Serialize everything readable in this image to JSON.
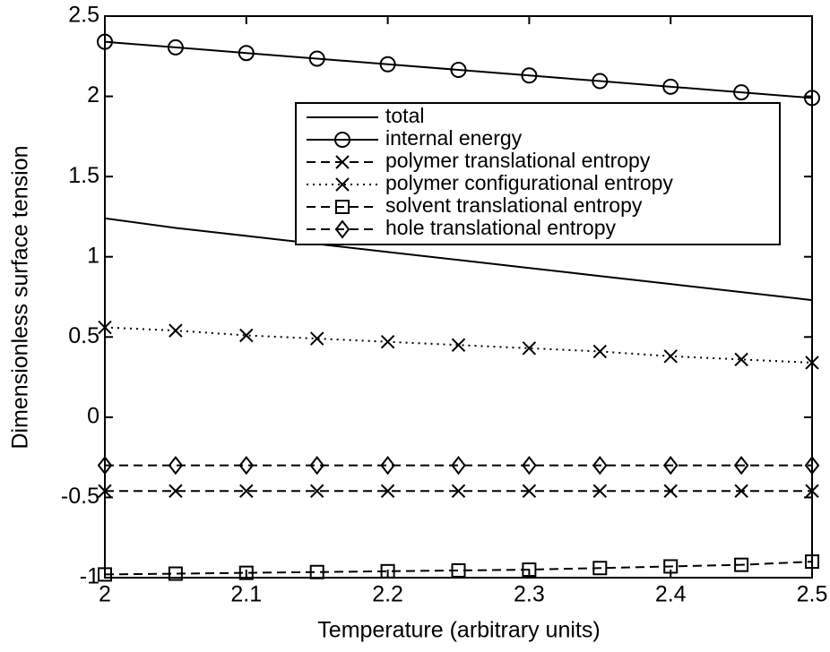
{
  "chart_data": {
    "type": "line",
    "xlabel": "Temperature (arbitrary units)",
    "ylabel": "Dimensionless surface tension",
    "x": [
      2,
      2.05,
      2.1,
      2.15,
      2.2,
      2.25,
      2.3,
      2.35,
      2.4,
      2.45,
      2.5
    ],
    "xlim": [
      2,
      2.5
    ],
    "xticks": [
      2,
      2.1,
      2.2,
      2.3,
      2.4,
      2.5
    ],
    "ylim": [
      -1,
      2.5
    ],
    "yticks": [
      -1,
      -0.5,
      0,
      0.5,
      1,
      1.5,
      2,
      2.5
    ],
    "series": [
      {
        "name": "total",
        "color": "#000000",
        "linestyle": "solid",
        "marker": "none",
        "values": [
          1.24,
          1.18,
          1.13,
          1.08,
          1.03,
          0.98,
          0.93,
          0.88,
          0.83,
          0.78,
          0.73
        ]
      },
      {
        "name": "internal energy",
        "color": "#000000",
        "linestyle": "solid",
        "marker": "circle",
        "values": [
          2.34,
          2.305,
          2.27,
          2.235,
          2.2,
          2.165,
          2.13,
          2.095,
          2.06,
          2.025,
          1.99
        ]
      },
      {
        "name": "polymer translational entropy",
        "color": "#000000",
        "linestyle": "dashed",
        "marker": "x",
        "values": [
          -0.46,
          -0.46,
          -0.46,
          -0.46,
          -0.46,
          -0.46,
          -0.46,
          -0.46,
          -0.46,
          -0.46,
          -0.46
        ]
      },
      {
        "name": "polymer configurational entropy",
        "color": "#000000",
        "linestyle": "dotted",
        "marker": "x",
        "values": [
          0.56,
          0.54,
          0.51,
          0.49,
          0.47,
          0.45,
          0.43,
          0.41,
          0.38,
          0.36,
          0.34
        ]
      },
      {
        "name": "solvent translational entropy",
        "color": "#000000",
        "linestyle": "dashed",
        "marker": "square",
        "values": [
          -0.98,
          -0.975,
          -0.97,
          -0.965,
          -0.96,
          -0.955,
          -0.95,
          -0.94,
          -0.93,
          -0.92,
          -0.9
        ]
      },
      {
        "name": "hole translational entropy",
        "color": "#000000",
        "linestyle": "dashed",
        "marker": "diamond",
        "values": [
          -0.3,
          -0.3,
          -0.3,
          -0.3,
          -0.3,
          -0.3,
          -0.3,
          -0.3,
          -0.3,
          -0.3,
          -0.3
        ]
      }
    ]
  }
}
